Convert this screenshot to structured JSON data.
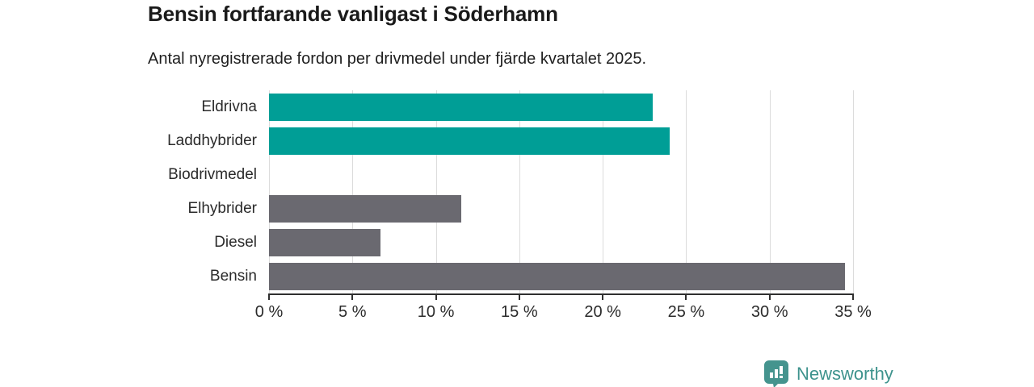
{
  "chart_data": {
    "type": "bar",
    "orientation": "horizontal",
    "title": "Bensin fortfarande vanligast i Söderhamn",
    "subtitle": "Antal nyregistrerade fordon per drivmedel under fjärde kvartalet 2025.",
    "categories": [
      "Eldrivna",
      "Laddhybrider",
      "Biodrivmedel",
      "Elhybrider",
      "Diesel",
      "Bensin"
    ],
    "values": [
      23,
      24,
      0,
      11.5,
      6.7,
      34.5
    ],
    "bar_colors": [
      "#009E96",
      "#009E96",
      "#6A6970",
      "#6A6970",
      "#6A6970",
      "#6A6970"
    ],
    "xlim": [
      0,
      35
    ],
    "x_ticks": [
      0,
      5,
      10,
      15,
      20,
      25,
      30,
      35
    ],
    "x_tick_labels": [
      "0 %",
      "5 %",
      "10 %",
      "15 %",
      "20 %",
      "25 %",
      "30 %",
      "35 %"
    ],
    "grid": true,
    "legend": false
  },
  "footer": {
    "brand": "Newsworthy",
    "logo_icon": "bar-chart-speech-bubble-icon"
  },
  "colors": {
    "highlight": "#009E96",
    "bar_default": "#6A6970",
    "gridline": "#DCDCDC",
    "axis": "#2F2F2F",
    "text": "#1A1A1A",
    "brand": "#3E938D"
  }
}
